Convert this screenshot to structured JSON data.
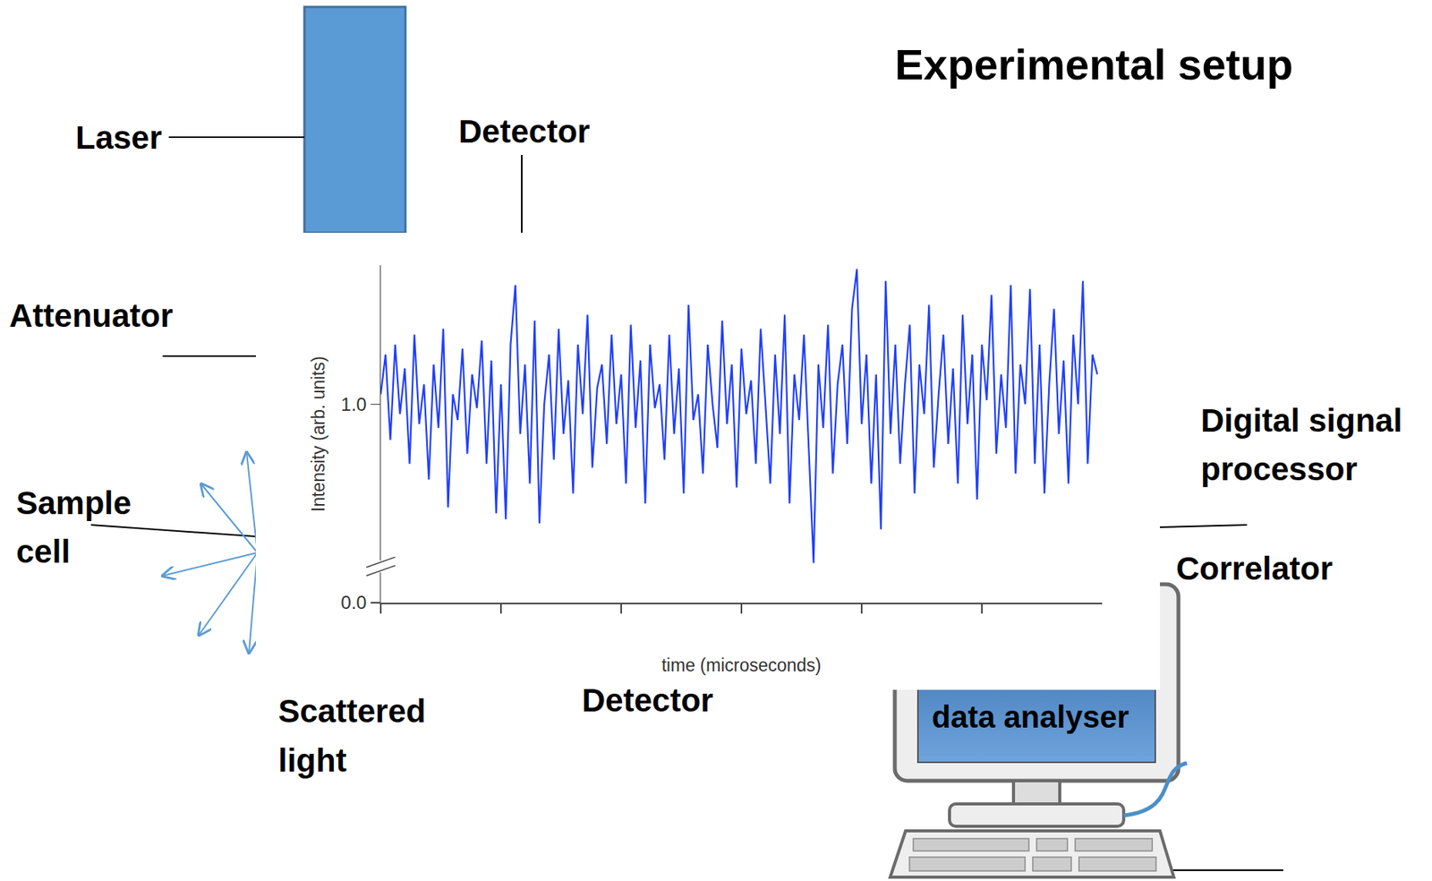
{
  "title": "Experimental setup",
  "labels": {
    "laser": "Laser",
    "detector_top": "Detector",
    "attenuator": "Attenuator",
    "sample_cell": [
      "Sample",
      "cell"
    ],
    "dsp": [
      "Digital signal",
      "processor"
    ],
    "correlator": "Correlator",
    "scattered_light": [
      "Scattered",
      "light"
    ],
    "detector_bottom": "Detector",
    "data_analyser": "data analyser"
  },
  "chart_data": {
    "type": "line",
    "x_label": "time (microseconds)",
    "y_label": "Intensity (arb. units)",
    "color": "#1f3fff",
    "xlim": [
      0,
      6
    ],
    "ylim": [
      0,
      1.7
    ],
    "xticks": [
      0,
      1,
      2,
      3,
      4,
      5
    ],
    "yticks": [
      {
        "value": 0,
        "label": "0.0"
      },
      {
        "value": 1,
        "label": "1.0"
      }
    ],
    "tick_labels": "y",
    "x": [
      0,
      0.04,
      0.08,
      0.12,
      0.16,
      0.2,
      0.24,
      0.28,
      0.32,
      0.36,
      0.4,
      0.44,
      0.48,
      0.52,
      0.56,
      0.6,
      0.64,
      0.68,
      0.72,
      0.76,
      0.8,
      0.84,
      0.88,
      0.92,
      0.96,
      1.0,
      1.04,
      1.08,
      1.12,
      1.16,
      1.2,
      1.24,
      1.28,
      1.32,
      1.36,
      1.4,
      1.44,
      1.48,
      1.52,
      1.56,
      1.6,
      1.64,
      1.68,
      1.72,
      1.76,
      1.8,
      1.84,
      1.88,
      1.92,
      1.96,
      2.0,
      2.04,
      2.08,
      2.12,
      2.16,
      2.2,
      2.24,
      2.28,
      2.32,
      2.36,
      2.4,
      2.44,
      2.48,
      2.52,
      2.56,
      2.6,
      2.64,
      2.68,
      2.72,
      2.76,
      2.8,
      2.84,
      2.88,
      2.92,
      2.96,
      3.0,
      3.04,
      3.08,
      3.12,
      3.16,
      3.2,
      3.24,
      3.28,
      3.32,
      3.36,
      3.4,
      3.44,
      3.48,
      3.52,
      3.56,
      3.6,
      3.64,
      3.68,
      3.72,
      3.76,
      3.8,
      3.84,
      3.88,
      3.92,
      3.96,
      4.0,
      4.04,
      4.08,
      4.12,
      4.16,
      4.2,
      4.24,
      4.28,
      4.32,
      4.36,
      4.4,
      4.44,
      4.48,
      4.52,
      4.56,
      4.6,
      4.64,
      4.68,
      4.72,
      4.76,
      4.8,
      4.84,
      4.88,
      4.92,
      4.96,
      5.0,
      5.04,
      5.08,
      5.12,
      5.16,
      5.2,
      5.24,
      5.28,
      5.32,
      5.36,
      5.4,
      5.44,
      5.48,
      5.52,
      5.56,
      5.6,
      5.64,
      5.68,
      5.72,
      5.76,
      5.8,
      5.84,
      5.88,
      5.92,
      5.96
    ],
    "values": [
      1.05,
      1.25,
      0.82,
      1.3,
      0.95,
      1.18,
      0.7,
      1.35,
      0.9,
      1.1,
      0.62,
      1.2,
      0.88,
      1.38,
      0.48,
      1.05,
      0.92,
      1.28,
      0.75,
      1.15,
      0.98,
      1.32,
      0.7,
      1.22,
      0.45,
      1.1,
      0.42,
      1.3,
      1.6,
      0.85,
      1.2,
      0.6,
      1.42,
      0.4,
      1.0,
      1.25,
      0.72,
      1.38,
      0.85,
      1.12,
      0.55,
      1.3,
      0.95,
      1.45,
      0.68,
      1.08,
      1.2,
      0.8,
      1.35,
      0.9,
      1.15,
      0.6,
      1.4,
      0.88,
      1.22,
      0.5,
      1.3,
      0.98,
      1.1,
      0.72,
      1.35,
      0.85,
      1.18,
      0.55,
      1.5,
      0.92,
      1.05,
      0.65,
      1.3,
      1.0,
      0.78,
      1.42,
      0.9,
      1.2,
      0.58,
      1.28,
      0.95,
      1.12,
      0.7,
      1.38,
      1.0,
      0.6,
      1.25,
      0.85,
      1.45,
      0.5,
      1.15,
      0.92,
      1.35,
      0.75,
      0.2,
      1.2,
      0.88,
      1.4,
      0.65,
      1.1,
      1.3,
      0.8,
      1.48,
      1.68,
      0.9,
      1.25,
      0.6,
      1.15,
      0.37,
      1.62,
      0.85,
      1.3,
      0.7,
      1.1,
      1.4,
      0.55,
      1.2,
      0.95,
      1.5,
      0.68,
      1.05,
      1.35,
      0.8,
      1.18,
      0.6,
      1.45,
      0.9,
      1.25,
      0.52,
      1.3,
      1.02,
      1.55,
      0.75,
      1.15,
      0.88,
      1.6,
      0.65,
      1.2,
      1.0,
      1.58,
      0.7,
      1.3,
      0.55,
      1.1,
      1.48,
      0.85,
      1.22,
      0.6,
      1.35,
      1.0,
      1.62,
      0.7,
      1.25,
      1.15
    ]
  }
}
